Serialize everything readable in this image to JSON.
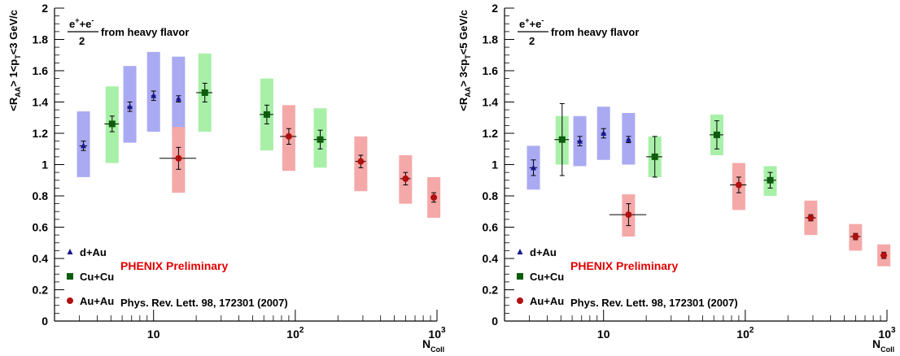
{
  "chart_data": [
    {
      "type": "scatter",
      "x_scale": "log",
      "xlim": [
        2,
        1000
      ],
      "ylim": [
        0,
        2
      ],
      "y_ticks": [
        0,
        0.2,
        0.4,
        0.6,
        0.8,
        1,
        1.2,
        1.4,
        1.6,
        1.8,
        2
      ],
      "x_ticks": [
        {
          "value": 10,
          "label": "10"
        },
        {
          "value": 100,
          "label": "10",
          "exp": "2"
        },
        {
          "value": 1000,
          "label": "10",
          "exp": "3"
        }
      ],
      "ylabel": {
        "main": "<R",
        "sub1": "AA",
        "mid1": "> 1<p",
        "sub2": "T",
        "mid2": "<3 GeV/c"
      },
      "xlabel": {
        "main": "N",
        "sub": "Coll"
      },
      "annotation": {
        "numerator": "e",
        "sup": "+",
        "plus": "+e",
        "sup2": "-",
        "denominator": "2",
        "text": "from heavy flavor"
      },
      "preliminary": "PHENIX Preliminary",
      "reference": "Phys. Rev. Lett. 98, 172301 (2007)",
      "series": [
        {
          "name": "d+Au",
          "color": "#1a1a8c",
          "box_color": "#aaaaf2",
          "marker": "triangle",
          "points": [
            {
              "x": 3.2,
              "y": 1.12,
              "xerr": [
                0.2,
                0.2
              ],
              "yerr": 0.03,
              "sys": [
                0.92,
                1.34
              ]
            },
            {
              "x": 6.8,
              "y": 1.37,
              "xerr": [
                0.3,
                0.3
              ],
              "yerr": 0.03,
              "sys": [
                1.14,
                1.63
              ]
            },
            {
              "x": 10,
              "y": 1.44,
              "xerr": [
                0.4,
                0.4
              ],
              "yerr": 0.03,
              "sys": [
                1.21,
                1.72
              ]
            },
            {
              "x": 15,
              "y": 1.42,
              "xerr": [
                0.5,
                0.5
              ],
              "yerr": 0.02,
              "sys": [
                1.18,
                1.69
              ]
            }
          ]
        },
        {
          "name": "Cu+Cu",
          "color": "#0d5c0d",
          "box_color": "#a8f0a8",
          "marker": "square",
          "points": [
            {
              "x": 5.1,
              "y": 1.26,
              "xerr": [
                0.6,
                0.6
              ],
              "yerr": 0.05,
              "sys": [
                1.01,
                1.5
              ]
            },
            {
              "x": 23,
              "y": 1.46,
              "xerr": [
                3,
                3
              ],
              "yerr": 0.06,
              "sys": [
                1.21,
                1.71
              ]
            },
            {
              "x": 63,
              "y": 1.32,
              "xerr": [
                7,
                7
              ],
              "yerr": 0.06,
              "sys": [
                1.09,
                1.55
              ]
            },
            {
              "x": 150,
              "y": 1.16,
              "xerr": [
                15,
                15
              ],
              "yerr": 0.06,
              "sys": [
                0.98,
                1.36
              ]
            }
          ]
        },
        {
          "name": "Au+Au",
          "color": "#b01010",
          "box_color": "#f5a8a8",
          "marker": "circle",
          "points": [
            {
              "x": 15,
              "y": 1.04,
              "xerr": [
                4,
                5
              ],
              "yerr": 0.07,
              "sys": [
                0.82,
                1.24
              ]
            },
            {
              "x": 90,
              "y": 1.18,
              "xerr": [
                12,
                12
              ],
              "yerr": 0.05,
              "sys": [
                0.96,
                1.38
              ]
            },
            {
              "x": 290,
              "y": 1.02,
              "xerr": [
                25,
                25
              ],
              "yerr": 0.04,
              "sys": [
                0.83,
                1.18
              ]
            },
            {
              "x": 600,
              "y": 0.91,
              "xerr": [
                50,
                50
              ],
              "yerr": 0.04,
              "sys": [
                0.75,
                1.06
              ]
            },
            {
              "x": 950,
              "y": 0.79,
              "xerr": [
                50,
                50
              ],
              "yerr": 0.03,
              "sys": [
                0.66,
                0.92
              ]
            }
          ]
        }
      ]
    },
    {
      "type": "scatter",
      "x_scale": "log",
      "xlim": [
        2,
        1000
      ],
      "ylim": [
        0,
        2
      ],
      "y_ticks": [
        0,
        0.2,
        0.4,
        0.6,
        0.8,
        1,
        1.2,
        1.4,
        1.6,
        1.8,
        2
      ],
      "x_ticks": [
        {
          "value": 10,
          "label": "10"
        },
        {
          "value": 100,
          "label": "10",
          "exp": "2"
        },
        {
          "value": 1000,
          "label": "10",
          "exp": "3"
        }
      ],
      "ylabel": {
        "main": "<R",
        "sub1": "AA",
        "mid1": "> 3<p",
        "sub2": "T",
        "mid2": "<5 GeV/c"
      },
      "xlabel": {
        "main": "N",
        "sub": "Coll"
      },
      "annotation": {
        "numerator": "e",
        "sup": "+",
        "plus": "+e",
        "sup2": "-",
        "denominator": "2",
        "text": "from heavy flavor"
      },
      "preliminary": "PHENIX Preliminary",
      "reference": "Phys. Rev. Lett. 98, 172301 (2007)",
      "series": [
        {
          "name": "d+Au",
          "color": "#1a1a8c",
          "box_color": "#aaaaf2",
          "marker": "triangle",
          "points": [
            {
              "x": 3.2,
              "y": 0.98,
              "xerr": [
                0.2,
                0.2
              ],
              "yerr": 0.05,
              "sys": [
                0.84,
                1.12
              ]
            },
            {
              "x": 6.8,
              "y": 1.15,
              "xerr": [
                0.3,
                0.3
              ],
              "yerr": 0.03,
              "sys": [
                0.99,
                1.31
              ]
            },
            {
              "x": 10,
              "y": 1.2,
              "xerr": [
                0.4,
                0.4
              ],
              "yerr": 0.03,
              "sys": [
                1.03,
                1.37
              ]
            },
            {
              "x": 15,
              "y": 1.16,
              "xerr": [
                0.5,
                0.5
              ],
              "yerr": 0.02,
              "sys": [
                1.0,
                1.33
              ]
            }
          ]
        },
        {
          "name": "Cu+Cu",
          "color": "#0d5c0d",
          "box_color": "#a8f0a8",
          "marker": "square",
          "points": [
            {
              "x": 5.1,
              "y": 1.16,
              "xerr": [
                0.6,
                0.6
              ],
              "yerr": 0.23,
              "sys": [
                1.0,
                1.31
              ]
            },
            {
              "x": 23,
              "y": 1.05,
              "xerr": [
                3,
                3
              ],
              "yerr": 0.13,
              "sys": [
                0.92,
                1.18
              ]
            },
            {
              "x": 63,
              "y": 1.19,
              "xerr": [
                7,
                7
              ],
              "yerr": 0.09,
              "sys": [
                1.06,
                1.32
              ]
            },
            {
              "x": 150,
              "y": 0.9,
              "xerr": [
                15,
                15
              ],
              "yerr": 0.05,
              "sys": [
                0.8,
                0.99
              ]
            }
          ]
        },
        {
          "name": "Au+Au",
          "color": "#b01010",
          "box_color": "#f5a8a8",
          "marker": "circle",
          "points": [
            {
              "x": 15,
              "y": 0.68,
              "xerr": [
                4,
                5
              ],
              "yerr": 0.07,
              "sys": [
                0.54,
                0.81
              ]
            },
            {
              "x": 90,
              "y": 0.87,
              "xerr": [
                12,
                12
              ],
              "yerr": 0.05,
              "sys": [
                0.71,
                1.01
              ]
            },
            {
              "x": 290,
              "y": 0.66,
              "xerr": [
                25,
                25
              ],
              "yerr": 0.02,
              "sys": [
                0.55,
                0.77
              ]
            },
            {
              "x": 600,
              "y": 0.54,
              "xerr": [
                50,
                50
              ],
              "yerr": 0.02,
              "sys": [
                0.45,
                0.62
              ]
            },
            {
              "x": 950,
              "y": 0.42,
              "xerr": [
                50,
                50
              ],
              "yerr": 0.02,
              "sys": [
                0.35,
                0.49
              ]
            }
          ]
        }
      ]
    }
  ]
}
